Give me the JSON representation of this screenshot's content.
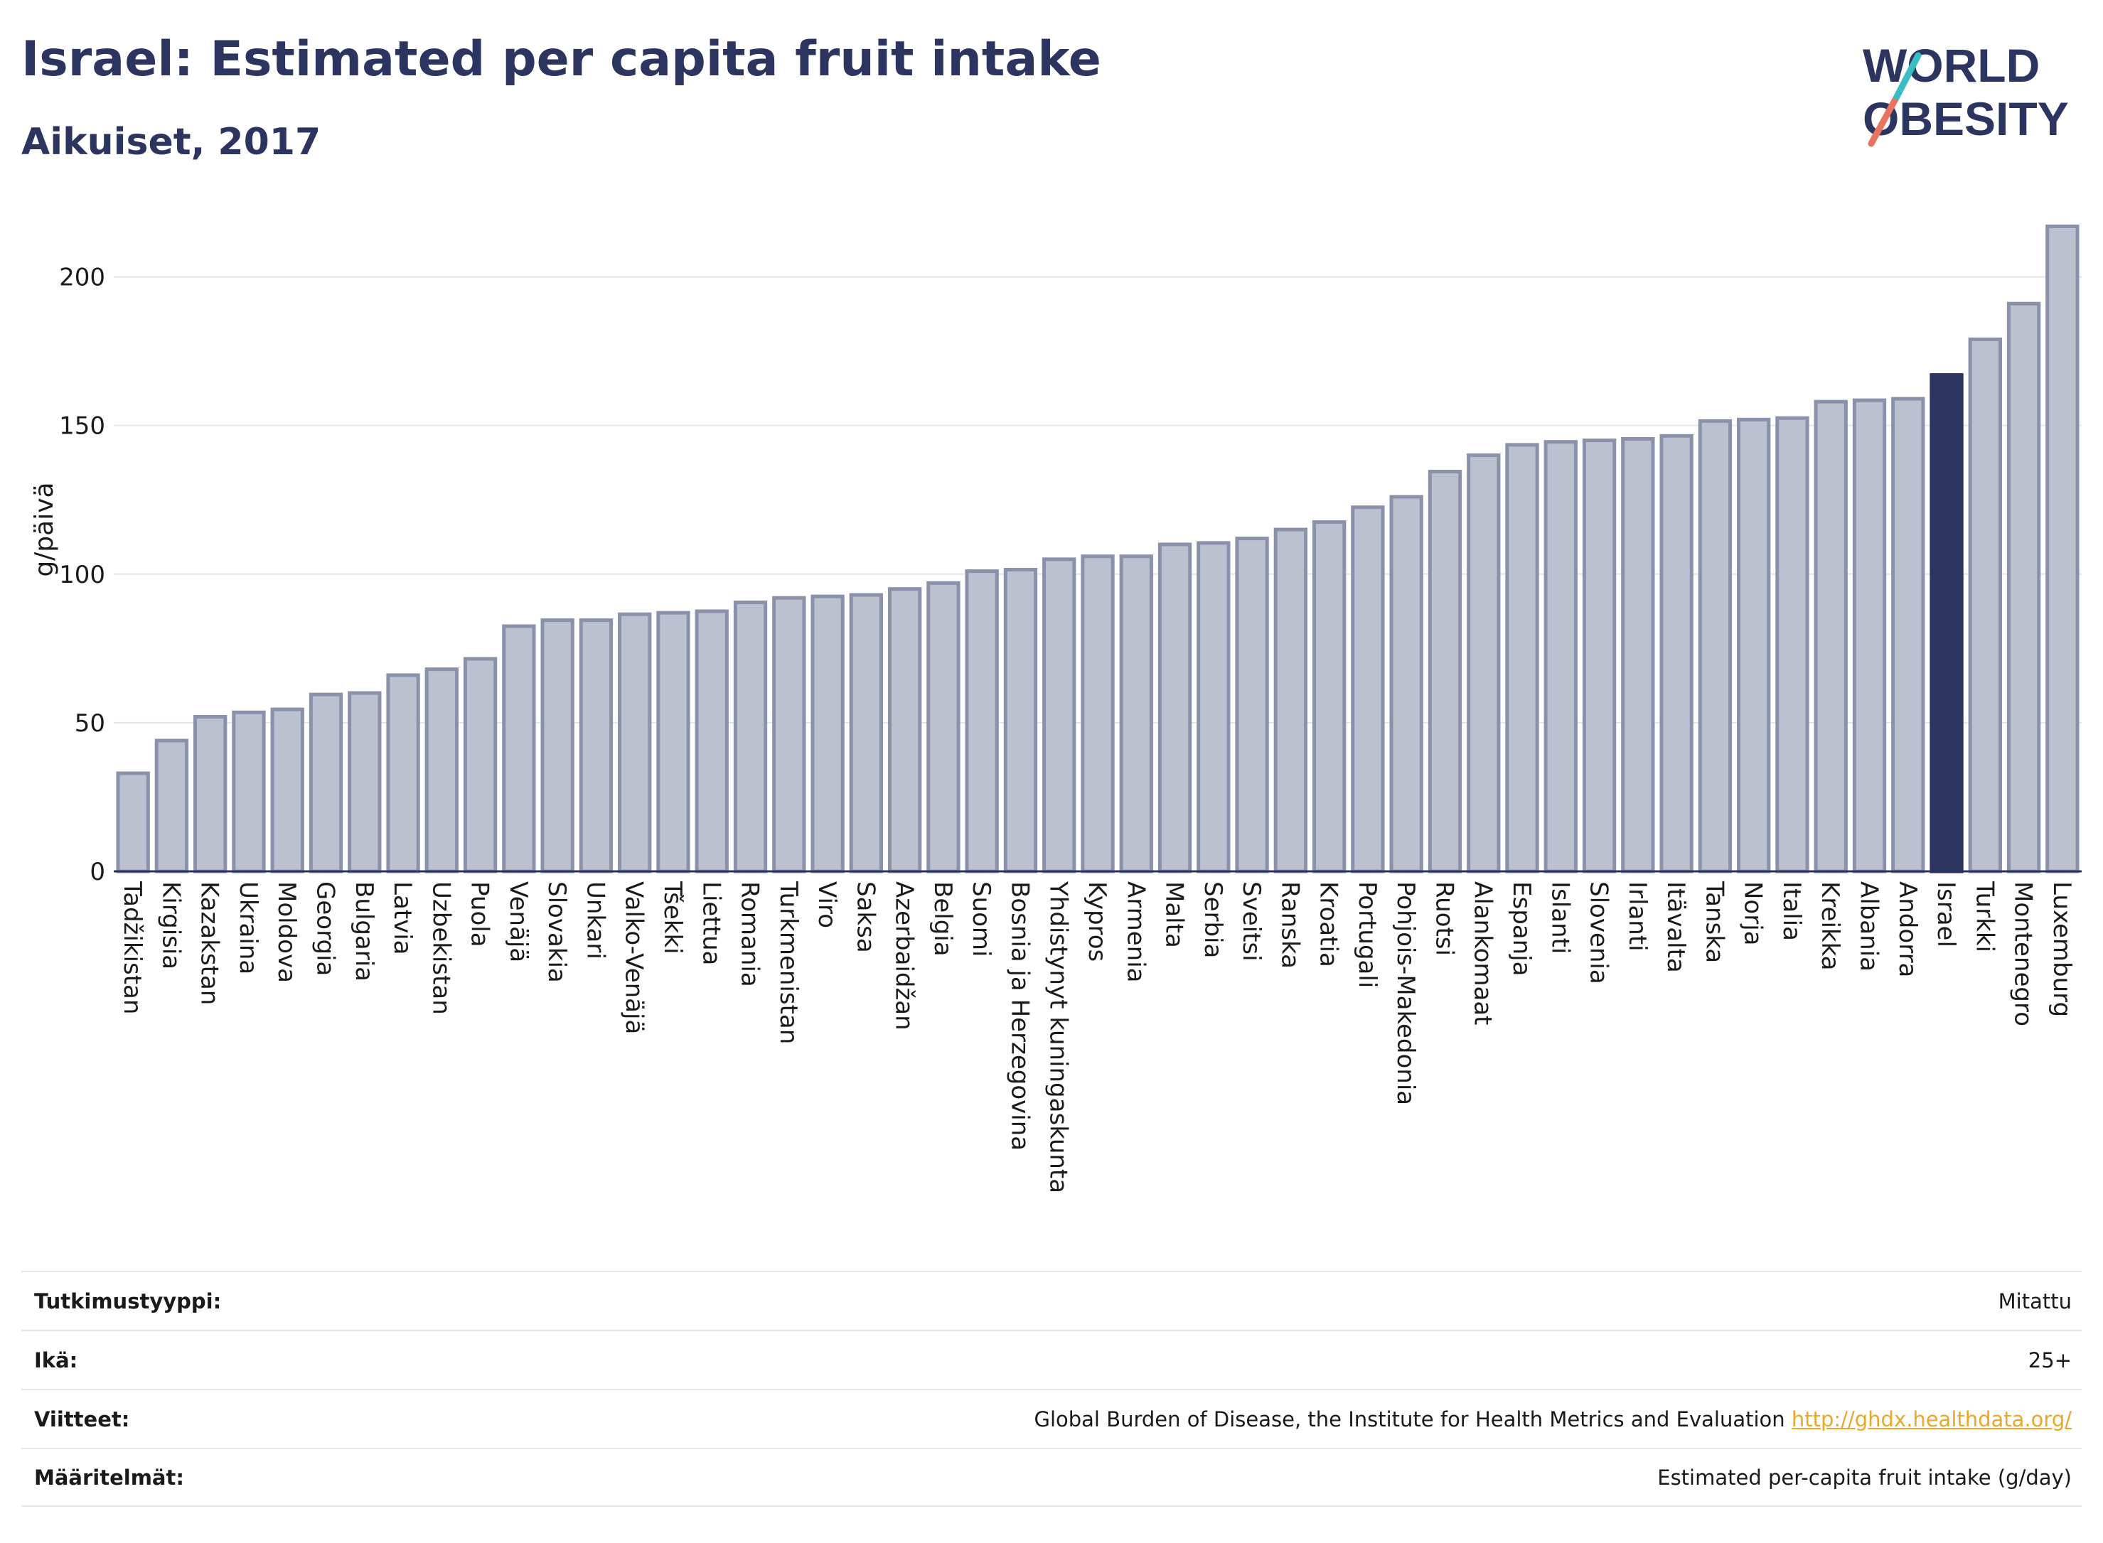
{
  "header": {
    "title": "Israel: Estimated per capita fruit intake",
    "subtitle": "Aikuiset, 2017"
  },
  "logo": {
    "line1": "WORLD",
    "line2": "OBESITY"
  },
  "chart_data": {
    "type": "bar",
    "ylabel": "g/päivä",
    "ylim": [
      0,
      225
    ],
    "yticks": [
      0,
      50,
      100,
      150,
      200
    ],
    "grid": true,
    "highlight": "Israel",
    "colors": {
      "bar": "#bcc1d0",
      "bar_border": "#8a91ab",
      "highlight": "#2c3560",
      "grid": "#e6e6ea"
    },
    "categories": [
      "Tadžikistan",
      "Kirgisia",
      "Kazakstan",
      "Ukraina",
      "Moldova",
      "Georgia",
      "Bulgaria",
      "Latvia",
      "Uzbekistan",
      "Puola",
      "Venäjä",
      "Slovakia",
      "Unkari",
      "Valko-Venäjä",
      "Tšekki",
      "Liettua",
      "Romania",
      "Turkmenistan",
      "Viro",
      "Saksa",
      "Azerbaidžan",
      "Belgia",
      "Suomi",
      "Bosnia ja Herzegovina",
      "Yhdistynyt kuningaskunta",
      "Kypros",
      "Armenia",
      "Malta",
      "Serbia",
      "Sveitsi",
      "Ranska",
      "Kroatia",
      "Portugali",
      "Pohjois-Makedonia",
      "Ruotsi",
      "Alankomaat",
      "Espanja",
      "Islanti",
      "Slovenia",
      "Irlanti",
      "Itävalta",
      "Tanska",
      "Norja",
      "Italia",
      "Kreikka",
      "Albania",
      "Andorra",
      "Israel",
      "Turkki",
      "Montenegro",
      "Luxemburg"
    ],
    "values": [
      33,
      44,
      52,
      53.5,
      54.5,
      59.5,
      60,
      66,
      68,
      71.5,
      82.5,
      84.5,
      84.5,
      86.5,
      87,
      87.5,
      90.5,
      92,
      92.5,
      93,
      95,
      97,
      101,
      101.5,
      105,
      106,
      106,
      110,
      110.5,
      112,
      115,
      117.5,
      122.5,
      126,
      134.5,
      140,
      143.5,
      144.5,
      145,
      145.5,
      146.5,
      151.5,
      152,
      152.5,
      158,
      158.5,
      159,
      167,
      179,
      191,
      217
    ]
  },
  "meta": [
    {
      "label": "Tutkimustyyppi:",
      "value": "Mitattu"
    },
    {
      "label": "Ikä:",
      "value": "25+"
    },
    {
      "label": "Viitteet:",
      "value": "Global Burden of Disease, the Institute for Health Metrics and Evaluation ",
      "link": "http://ghdx.healthdata.org/"
    },
    {
      "label": "Määritelmät:",
      "value": "Estimated per-capita fruit intake (g/day)"
    }
  ]
}
